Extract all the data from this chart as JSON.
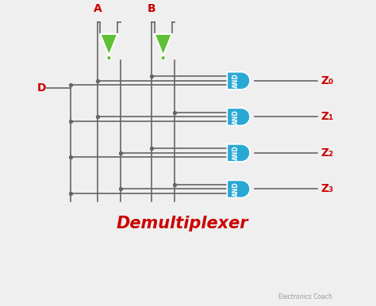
{
  "bg_color": "#efefef",
  "title": "Demultiplexer",
  "title_color": "#cc0000",
  "title_fontsize": 15,
  "watermark": "Electronics Coach",
  "label_A": "A",
  "label_B": "B",
  "label_D": "D",
  "label_color": "#cc0000",
  "and_gate_color": "#29a8d4",
  "and_gate_text_color": "white",
  "not_gate_color": "#5dc133",
  "wire_color": "#666666",
  "output_labels": [
    "Z₀",
    "Z₁",
    "Z₂",
    "Z₃"
  ],
  "fig_width": 4.74,
  "fig_height": 3.86,
  "dpi": 100
}
